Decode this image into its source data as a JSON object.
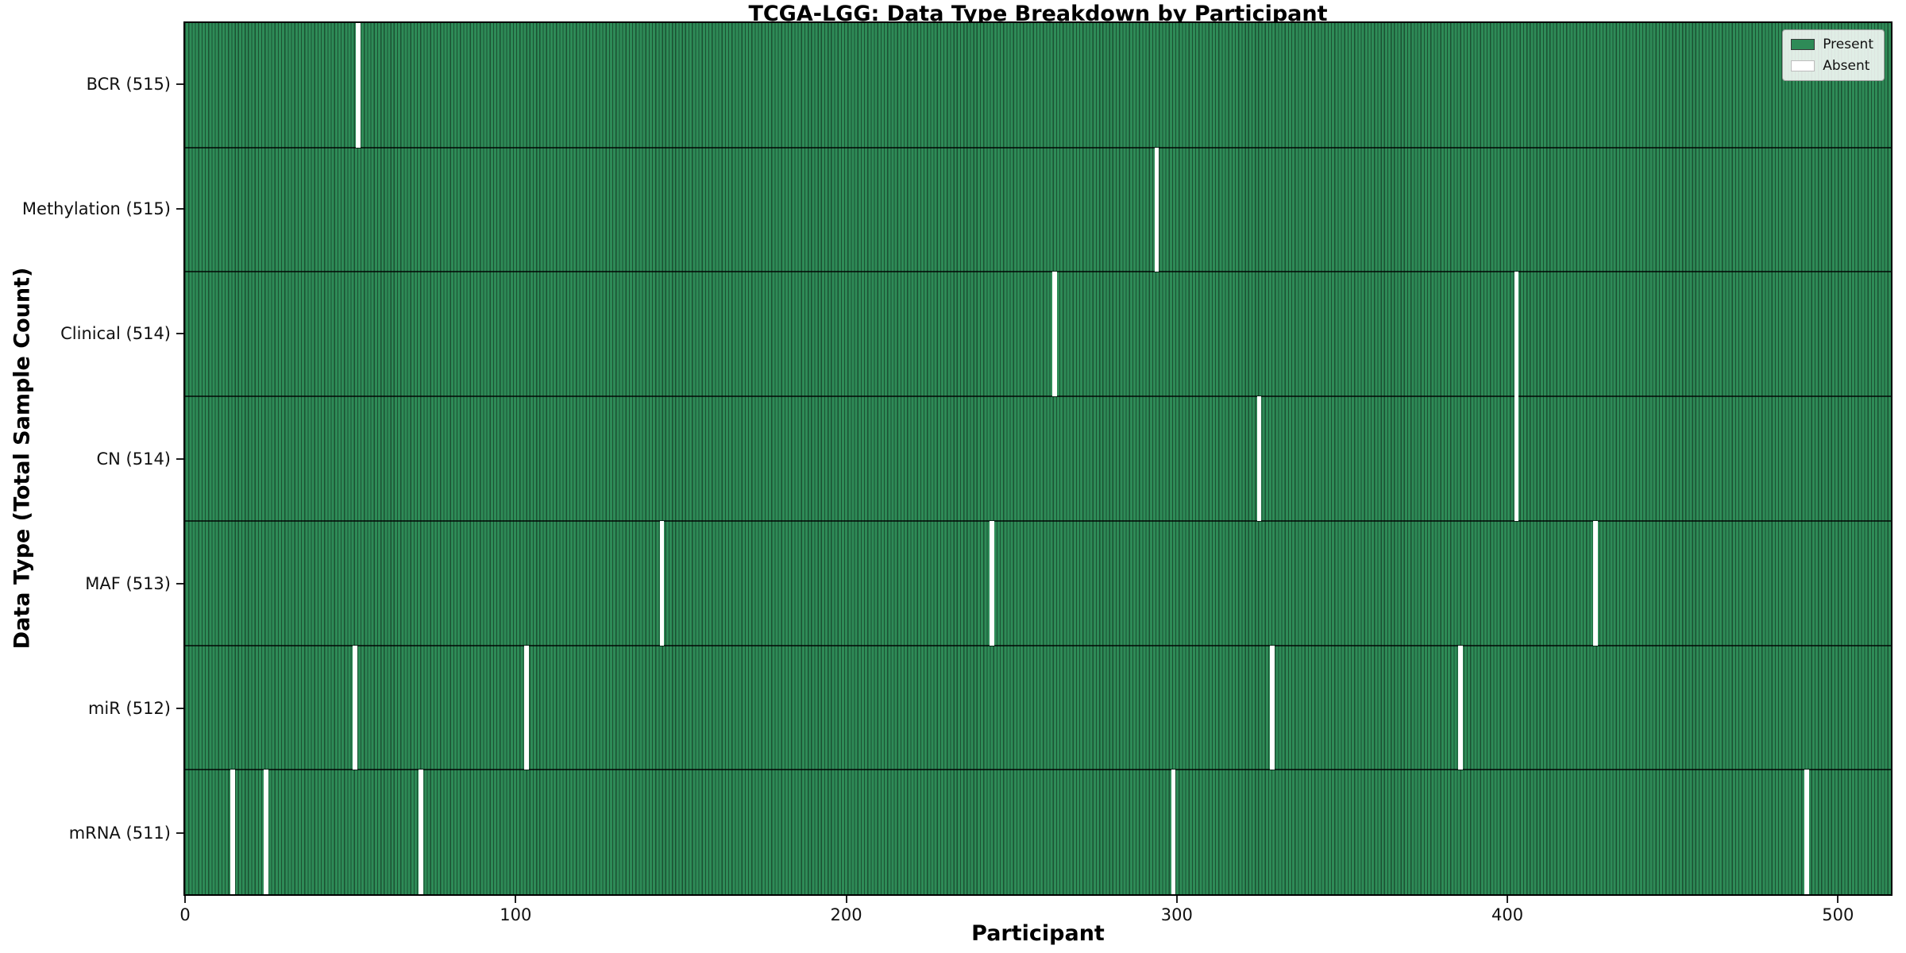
{
  "title": "TCGA-LGG: Data Type Breakdown by Participant",
  "xlabel": "Participant",
  "ylabel": "Data Type (Total Sample Count)",
  "legend": {
    "present_label": "Present",
    "absent_label": "Absent"
  },
  "colors": {
    "present": "#2E8B57",
    "absent": "#FFFFFF"
  },
  "chart_data": {
    "type": "heatmap",
    "title": "TCGA-LGG: Data Type Breakdown by Participant",
    "xlabel": "Participant",
    "ylabel": "Data Type (Total Sample Count)",
    "legend_entries": [
      "Present",
      "Absent"
    ],
    "legend_position": "upper right",
    "grid": false,
    "total_participants": 516,
    "x_range": [
      0,
      515
    ],
    "x_ticks": [
      0,
      100,
      200,
      300,
      400,
      500
    ],
    "rows": [
      {
        "data_type": "BCR",
        "label": "BCR (515)",
        "total": 515,
        "absent_participants": [
          52
        ]
      },
      {
        "data_type": "Methylation",
        "label": "Methylation (515)",
        "total": 515,
        "absent_participants": [
          294
        ]
      },
      {
        "data_type": "Clinical",
        "label": "Clinical (514)",
        "total": 514,
        "absent_participants": [
          263,
          403
        ]
      },
      {
        "data_type": "CN",
        "label": "CN (514)",
        "total": 514,
        "absent_participants": [
          325,
          403
        ]
      },
      {
        "data_type": "MAF",
        "label": "MAF (513)",
        "total": 513,
        "absent_participants": [
          144,
          244,
          427
        ]
      },
      {
        "data_type": "miR",
        "label": "miR (512)",
        "total": 512,
        "absent_participants": [
          51,
          103,
          329,
          386
        ]
      },
      {
        "data_type": "mRNA",
        "label": "mRNA (511)",
        "total": 511,
        "absent_participants": [
          14,
          24,
          71,
          299,
          491
        ]
      }
    ]
  }
}
